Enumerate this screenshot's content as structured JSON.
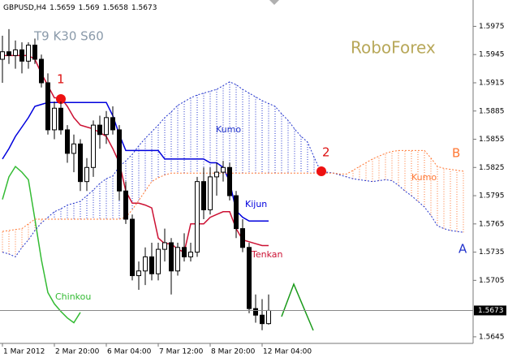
{
  "chart_data": {
    "type": "candlestick",
    "title": "GBPUSD,H4",
    "subtitle": "T9 K30 S60",
    "watermark": "RoboForex",
    "categories": [
      "1 Mar 2012",
      null,
      null,
      null,
      null,
      null,
      null,
      null,
      "2 Mar 20:00",
      null,
      null,
      null,
      null,
      null,
      null,
      null,
      "6 Mar 04:00",
      null,
      null,
      null,
      null,
      null,
      null,
      null,
      "7 Mar 12:00",
      null,
      null,
      null,
      null,
      null,
      null,
      null,
      "8 Mar 20:00",
      null,
      null,
      null,
      null,
      null,
      null,
      null,
      "12 Mar 04:00",
      null,
      null,
      null,
      null,
      null,
      null,
      null,
      null,
      null,
      null,
      null,
      null,
      null,
      null,
      null,
      null,
      null,
      null,
      null,
      null,
      null,
      null,
      null,
      null,
      null,
      null,
      null,
      null,
      null,
      null,
      null
    ],
    "candles": {
      "up_color": "#ffffff",
      "down_color": "#000000",
      "open": [
        1.594,
        1.5948,
        1.5944,
        1.595,
        1.5938,
        1.5955,
        1.594,
        1.5915,
        1.5865,
        1.5888,
        1.5865,
        1.584,
        1.585,
        1.581,
        1.5825,
        1.587,
        1.586,
        1.5878,
        1.5865,
        1.58,
        1.577,
        1.571,
        1.5715,
        1.573,
        1.5712,
        1.5738,
        1.5745,
        1.5715,
        1.574,
        1.573,
        1.5735,
        1.581,
        1.578,
        1.5815,
        1.582,
        1.5825,
        1.5795,
        1.576,
        1.574,
        1.5675,
        1.5668,
        1.5659,
        null,
        null,
        null,
        null,
        null,
        null,
        null,
        null,
        null,
        null,
        null,
        null,
        null,
        null,
        null,
        null,
        null,
        null,
        null,
        null,
        null,
        null,
        null,
        null,
        null,
        null,
        null,
        null,
        null,
        null
      ],
      "high": [
        1.5965,
        1.5972,
        1.596,
        1.5958,
        1.5958,
        1.5962,
        1.5945,
        1.5925,
        1.5895,
        1.5895,
        1.587,
        1.586,
        1.5855,
        1.5835,
        1.5875,
        1.588,
        1.5885,
        1.589,
        1.587,
        1.581,
        1.5775,
        1.5725,
        1.574,
        1.5745,
        1.5745,
        1.576,
        1.575,
        1.5745,
        1.5755,
        1.5745,
        1.5815,
        1.5825,
        1.5825,
        1.583,
        1.5832,
        1.583,
        1.58,
        1.577,
        1.5745,
        1.569,
        1.5685,
        1.569,
        null,
        null,
        null,
        null,
        null,
        null,
        null,
        null,
        null,
        null,
        null,
        null,
        null,
        null,
        null,
        null,
        null,
        null,
        null,
        null,
        null,
        null,
        null,
        null,
        null,
        null,
        null,
        null,
        null,
        null
      ],
      "low": [
        1.5915,
        1.5935,
        1.593,
        1.5925,
        1.593,
        1.5935,
        1.591,
        1.586,
        1.5855,
        1.586,
        1.583,
        1.582,
        1.58,
        1.58,
        1.5815,
        1.5845,
        1.585,
        1.586,
        1.579,
        1.5765,
        1.5705,
        1.5695,
        1.57,
        1.5705,
        1.5705,
        1.5725,
        1.569,
        1.571,
        1.5725,
        1.5725,
        1.573,
        1.577,
        1.5775,
        1.5795,
        1.581,
        1.579,
        1.575,
        1.5735,
        1.567,
        1.566,
        1.5652,
        1.5658,
        null,
        null,
        null,
        null,
        null,
        null,
        null,
        null,
        null,
        null,
        null,
        null,
        null,
        null,
        null,
        null,
        null,
        null,
        null,
        null,
        null,
        null,
        null,
        null,
        null,
        null,
        null,
        null,
        null,
        null
      ],
      "close": [
        1.5948,
        1.5944,
        1.595,
        1.5938,
        1.5955,
        1.594,
        1.5915,
        1.5865,
        1.5888,
        1.5865,
        1.584,
        1.585,
        1.581,
        1.5825,
        1.587,
        1.586,
        1.5878,
        1.5865,
        1.58,
        1.577,
        1.571,
        1.5715,
        1.573,
        1.5712,
        1.5738,
        1.5745,
        1.5715,
        1.574,
        1.573,
        1.5735,
        1.581,
        1.578,
        1.5815,
        1.582,
        1.5825,
        1.5795,
        1.576,
        1.574,
        1.5675,
        1.5668,
        1.5659,
        1.5673,
        null,
        null,
        null,
        null,
        null,
        null,
        null,
        null,
        null,
        null,
        null,
        null,
        null,
        null,
        null,
        null,
        null,
        null,
        null,
        null,
        null,
        null,
        null,
        null,
        null,
        null,
        null,
        null,
        null,
        null
      ]
    },
    "series": [
      {
        "name": "Tenkan",
        "color": "#cc1133",
        "style": "solid",
        "values": [
          1.5944,
          1.5944,
          1.5944,
          1.5944,
          1.5944,
          1.594,
          1.5925,
          1.5912,
          1.5899,
          1.5899,
          1.589,
          1.5878,
          1.587,
          1.5868,
          1.5866,
          1.5862,
          1.5858,
          1.5845,
          1.583,
          1.58,
          1.5787,
          1.5787,
          1.5785,
          1.5782,
          1.575,
          1.5744,
          1.5744,
          1.5738,
          1.5735,
          1.5765,
          1.5765,
          1.5765,
          1.5772,
          1.5775,
          1.5778,
          1.5778,
          1.576,
          1.5748,
          1.5746,
          1.5744,
          1.5742,
          1.5742,
          null,
          null,
          null,
          null,
          null,
          null,
          null,
          null,
          null,
          null,
          null,
          null,
          null,
          null,
          null,
          null,
          null,
          null,
          null,
          null,
          null,
          null,
          null,
          null,
          null,
          null,
          null,
          null,
          null,
          null
        ]
      },
      {
        "name": "Kijun",
        "color": "#0000dd",
        "style": "solid",
        "values": [
          1.5834,
          1.5845,
          1.5858,
          1.5868,
          1.5878,
          1.589,
          1.5892,
          1.5894,
          1.5894,
          1.5894,
          1.5894,
          1.5894,
          1.5894,
          1.5894,
          1.5894,
          1.5894,
          1.5894,
          1.588,
          1.586,
          1.5843,
          1.5843,
          1.5843,
          1.5843,
          1.5843,
          1.5843,
          1.5834,
          1.5834,
          1.5834,
          1.5834,
          1.5834,
          1.5834,
          1.5834,
          1.583,
          1.583,
          1.5825,
          1.581,
          1.5779,
          1.5772,
          1.5768,
          1.5768,
          1.5768,
          1.5768,
          null,
          null,
          null,
          null,
          null,
          null,
          null,
          null,
          null,
          null,
          null,
          null,
          null,
          null,
          null,
          null,
          null,
          null,
          null,
          null,
          null,
          null,
          null,
          null,
          null,
          null,
          null,
          null,
          null,
          null
        ]
      },
      {
        "name": "Chinkou",
        "color": "#33bb33",
        "style": "solid",
        "values": [
          1.5791,
          1.5815,
          1.5826,
          1.582,
          1.5812,
          1.577,
          1.5727,
          1.5692,
          1.568,
          1.5672,
          1.5665,
          1.566,
          1.5671,
          null,
          null,
          null,
          null,
          null,
          null,
          null,
          null,
          null,
          null,
          null,
          null,
          null,
          null,
          null,
          null,
          null,
          null,
          null,
          null,
          null,
          null,
          null,
          null,
          null,
          null,
          null,
          null,
          null,
          null,
          null,
          null,
          null,
          null,
          null,
          null,
          null,
          null,
          null,
          null,
          null,
          null,
          null,
          null,
          null,
          null,
          null,
          null,
          null,
          null,
          null,
          null,
          null,
          null,
          null,
          null,
          null,
          null,
          null
        ]
      },
      {
        "name": "A",
        "color": "#2233cc",
        "style": "dotted",
        "values": [
          1.5735,
          1.5733,
          1.573,
          1.574,
          1.5748,
          1.5758,
          1.5766,
          1.5772,
          1.5778,
          1.5781,
          1.5785,
          1.5787,
          1.5789,
          1.5795,
          1.5801,
          1.5808,
          1.5813,
          1.5816,
          1.5826,
          1.5832,
          1.5839,
          1.5848,
          1.5856,
          1.5863,
          1.587,
          1.5878,
          1.5884,
          1.5891,
          1.5895,
          1.5899,
          1.5902,
          1.5904,
          1.5906,
          1.5908,
          1.5912,
          1.5916,
          1.5913,
          1.5908,
          1.5904,
          1.59,
          1.5896,
          1.5893,
          1.589,
          1.5882,
          1.5875,
          1.5866,
          1.5858,
          1.5852,
          1.5836,
          1.5821,
          1.582,
          1.5819,
          1.5817,
          1.5815,
          1.5813,
          1.5812,
          1.5811,
          1.581,
          1.5811,
          1.5812,
          1.5811,
          1.5806,
          1.58,
          1.5795,
          1.5789,
          1.5783,
          1.5774,
          1.5763,
          1.576,
          1.5758,
          1.5757,
          1.5756
        ]
      },
      {
        "name": "B",
        "color": "#ff7733",
        "style": "dotted",
        "values": [
          1.5757,
          1.5758,
          1.5759,
          1.576,
          1.5765,
          1.577,
          1.577,
          1.577,
          1.577,
          1.577,
          1.577,
          1.577,
          1.577,
          1.577,
          1.577,
          1.577,
          1.577,
          1.577,
          1.577,
          1.5772,
          1.578,
          1.579,
          1.58,
          1.581,
          1.5814,
          1.5817,
          1.5819,
          1.5819,
          1.5819,
          1.5819,
          1.5819,
          1.5819,
          1.5819,
          1.5819,
          1.5819,
          1.5819,
          1.5819,
          1.5819,
          1.5819,
          1.5819,
          1.5819,
          1.5819,
          1.5819,
          1.5819,
          1.5819,
          1.5819,
          1.5819,
          1.5819,
          1.5819,
          1.5819,
          1.5819,
          1.5819,
          1.5818,
          1.5818,
          1.5822,
          1.5826,
          1.583,
          1.5834,
          1.5837,
          1.584,
          1.5842,
          1.5843,
          1.5843,
          1.5843,
          1.5843,
          1.5843,
          1.5835,
          1.5826,
          1.5824,
          1.5823,
          1.5822,
          1.5821
        ]
      }
    ],
    "annotations": [
      {
        "text": "1",
        "color": "#dd1111"
      },
      {
        "text": "2",
        "color": "#dd1111"
      },
      {
        "text": "Kumo",
        "color": "#2233cc"
      },
      {
        "text": "Kumo",
        "color": "#ff7733"
      }
    ],
    "ylim": [
      1.5638,
      1.6003
    ],
    "yticks": [
      1.5975,
      1.5945,
      1.5915,
      1.5885,
      1.5855,
      1.5825,
      1.5795,
      1.5765,
      1.5735,
      1.5705,
      1.5645
    ],
    "current_price_line": true
  }
}
